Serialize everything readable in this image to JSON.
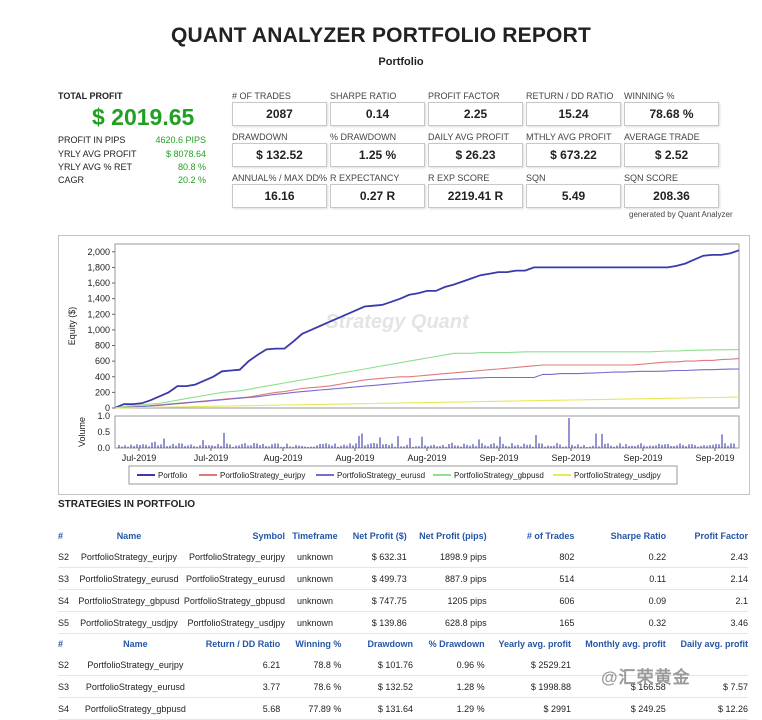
{
  "report": {
    "title": "QUANT ANALYZER PORTFOLIO REPORT",
    "subtitle": "Portfolio",
    "generated_by": "generated by Quant Analyzer"
  },
  "summary": {
    "total_profit_label": "TOTAL PROFIT",
    "total_profit_value": "$ 2019.65",
    "rows": [
      {
        "label": "PROFIT IN PIPS",
        "value": "4620.6 PIPS"
      },
      {
        "label": "YRLY AVG PROFIT",
        "value": "$ 8078.64"
      },
      {
        "label": "YRLY AVG % RET",
        "value": "80.8 %"
      },
      {
        "label": "CAGR",
        "value": "20.2 %"
      }
    ]
  },
  "metrics": [
    {
      "label": "# OF TRADES",
      "value": "2087"
    },
    {
      "label": "SHARPE RATIO",
      "value": "0.14"
    },
    {
      "label": "PROFIT FACTOR",
      "value": "2.25"
    },
    {
      "label": "RETURN / DD RATIO",
      "value": "15.24"
    },
    {
      "label": "WINNING %",
      "value": "78.68 %"
    },
    {
      "label": "DRAWDOWN",
      "value": "$ 132.52"
    },
    {
      "label": "% DRAWDOWN",
      "value": "1.25 %"
    },
    {
      "label": "DAILY AVG PROFIT",
      "value": "$ 26.23"
    },
    {
      "label": "MTHLY AVG PROFIT",
      "value": "$ 673.22"
    },
    {
      "label": "AVERAGE TRADE",
      "value": "$ 2.52"
    },
    {
      "label": "ANNUAL% / MAX DD%",
      "value": "16.16"
    },
    {
      "label": "R EXPECTANCY",
      "value": "0.27 R"
    },
    {
      "label": "R EXP SCORE",
      "value": "2219.41 R"
    },
    {
      "label": "SQN",
      "value": "5.49"
    },
    {
      "label": "SQN SCORE",
      "value": "208.36"
    }
  ],
  "chart_data": {
    "type": "line",
    "watermark": "Strategy Quant",
    "x": [
      0,
      1,
      2,
      3,
      4,
      5,
      6,
      7,
      8,
      9,
      10,
      11,
      12,
      13,
      14,
      15,
      16,
      17,
      18,
      19,
      20,
      21,
      22,
      23,
      24,
      25,
      26,
      27,
      28,
      29,
      30,
      31,
      32,
      33,
      34,
      35,
      36,
      37,
      38,
      39,
      40,
      41,
      42,
      43,
      44,
      45,
      46,
      47,
      48,
      49,
      50,
      51,
      52,
      53,
      54,
      55,
      56,
      57,
      58,
      59,
      60,
      61,
      62,
      63,
      64,
      65,
      66,
      67,
      68,
      69,
      70
    ],
    "xticks": [
      "Jul-2019",
      "Jul-2019",
      "Aug-2019",
      "Aug-2019",
      "Aug-2019",
      "Sep-2019",
      "Sep-2019",
      "Sep-2019",
      "Sep-2019"
    ],
    "ylabel": "Equity ($)",
    "ylim": [
      0,
      2100
    ],
    "yticks": [
      0,
      200,
      400,
      600,
      800,
      1000,
      1200,
      1400,
      1600,
      1800,
      2000
    ],
    "series": [
      {
        "name": "Portfolio",
        "color": "#3a3aaa",
        "values": [
          0,
          50,
          50,
          60,
          100,
          150,
          200,
          280,
          280,
          300,
          350,
          400,
          470,
          480,
          490,
          600,
          680,
          750,
          760,
          760,
          850,
          950,
          1000,
          1050,
          1100,
          1150,
          1200,
          1250,
          1300,
          1310,
          1320,
          1360,
          1400,
          1450,
          1470,
          1500,
          1500,
          1550,
          1580,
          1620,
          1660,
          1700,
          1720,
          1740,
          1740,
          1760,
          1760,
          1800,
          1800,
          1800,
          1800,
          1800,
          1800,
          1800,
          1800,
          1800,
          1800,
          1800,
          1800,
          1800,
          1800,
          1800,
          1800,
          1820,
          1850,
          1900,
          1950,
          1960,
          1960,
          1980,
          2019
        ]
      },
      {
        "name": "PortfolioStrategy_eurjpy",
        "color": "#e07a7a",
        "values": [
          0,
          10,
          15,
          20,
          30,
          40,
          50,
          60,
          70,
          80,
          90,
          100,
          110,
          120,
          130,
          140,
          160,
          180,
          200,
          210,
          230,
          250,
          260,
          270,
          280,
          300,
          320,
          340,
          360,
          370,
          380,
          390,
          400,
          400,
          410,
          420,
          430,
          440,
          450,
          460,
          470,
          480,
          490,
          500,
          510,
          520,
          530,
          540,
          550,
          550,
          550,
          550,
          550,
          550,
          550,
          550,
          550,
          550,
          550,
          560,
          570,
          580,
          590,
          590,
          600,
          600,
          610,
          610,
          620,
          625,
          632
        ]
      },
      {
        "name": "PortfolioStrategy_eurusd",
        "color": "#7a6acc",
        "values": [
          0,
          8,
          12,
          18,
          25,
          35,
          45,
          55,
          65,
          75,
          85,
          95,
          105,
          115,
          125,
          135,
          145,
          160,
          175,
          185,
          200,
          210,
          220,
          230,
          240,
          250,
          260,
          270,
          280,
          290,
          300,
          310,
          320,
          330,
          340,
          350,
          360,
          365,
          370,
          375,
          380,
          385,
          390,
          390,
          390,
          390,
          390,
          390,
          430,
          430,
          440,
          440,
          440,
          445,
          450,
          455,
          460,
          460,
          465,
          470,
          470,
          470,
          475,
          480,
          480,
          485,
          490,
          490,
          495,
          498,
          500
        ]
      },
      {
        "name": "PortfolioStrategy_gbpusd",
        "color": "#8fe08f",
        "values": [
          0,
          20,
          30,
          40,
          50,
          60,
          80,
          100,
          120,
          140,
          160,
          180,
          200,
          210,
          220,
          240,
          260,
          280,
          300,
          320,
          340,
          360,
          380,
          400,
          420,
          440,
          460,
          480,
          500,
          520,
          540,
          560,
          580,
          600,
          620,
          640,
          660,
          680,
          700,
          700,
          700,
          710,
          710,
          710,
          710,
          715,
          720,
          720,
          720,
          720,
          720,
          720,
          720,
          720,
          720,
          720,
          720,
          720,
          720,
          720,
          720,
          725,
          730,
          730,
          735,
          740,
          740,
          745,
          745,
          747,
          748
        ]
      },
      {
        "name": "PortfolioStrategy_usdjpy",
        "color": "#e8e85a",
        "values": [
          0,
          2,
          4,
          6,
          8,
          10,
          12,
          14,
          16,
          18,
          20,
          22,
          24,
          26,
          28,
          30,
          32,
          34,
          36,
          38,
          40,
          42,
          44,
          46,
          48,
          50,
          52,
          54,
          56,
          58,
          60,
          62,
          64,
          66,
          68,
          70,
          72,
          74,
          76,
          78,
          80,
          82,
          84,
          86,
          88,
          90,
          92,
          94,
          96,
          98,
          100,
          102,
          104,
          106,
          108,
          110,
          112,
          114,
          116,
          118,
          120,
          122,
          124,
          126,
          128,
          130,
          132,
          134,
          136,
          138,
          139
        ]
      }
    ],
    "volume": {
      "ylabel": "Volume",
      "ylim": [
        0,
        1.0
      ],
      "yticks": [
        "0.0",
        "0.5",
        "1.0"
      ]
    }
  },
  "strategies": {
    "section_title": "STRATEGIES IN PORTFOLIO",
    "table1": {
      "headers": [
        "#",
        "Name",
        "Symbol",
        "Timeframe",
        "Net Profit ($)",
        "Net Profit (pips)",
        "# of Trades",
        "Sharpe Ratio",
        "Profit Factor"
      ],
      "rows": [
        [
          "S2",
          "PortfolioStrategy_eurjpy",
          "PortfolioStrategy_eurjpy",
          "unknown",
          "$ 632.31",
          "1898.9 pips",
          "802",
          "0.22",
          "2.43"
        ],
        [
          "S3",
          "PortfolioStrategy_eurusd",
          "PortfolioStrategy_eurusd",
          "unknown",
          "$ 499.73",
          "887.9 pips",
          "514",
          "0.11",
          "2.14"
        ],
        [
          "S4",
          "PortfolioStrategy_gbpusd",
          "PortfolioStrategy_gbpusd",
          "unknown",
          "$ 747.75",
          "1205 pips",
          "606",
          "0.09",
          "2.1"
        ],
        [
          "S5",
          "PortfolioStrategy_usdjpy",
          "PortfolioStrategy_usdjpy",
          "unknown",
          "$ 139.86",
          "628.8 pips",
          "165",
          "0.32",
          "3.46"
        ]
      ]
    },
    "table2": {
      "headers": [
        "#",
        "Name",
        "Return / DD Ratio",
        "Winning %",
        "Drawdown",
        "% Drawdown",
        "Yearly avg. profit",
        "Monthly avg. profit",
        "Daily avg. profit"
      ],
      "rows": [
        [
          "S2",
          "PortfolioStrategy_eurjpy",
          "6.21",
          "78.8 %",
          "$ 101.76",
          "0.96 %",
          "$ 2529.21",
          "",
          ""
        ],
        [
          "S3",
          "PortfolioStrategy_eurusd",
          "3.77",
          "78.6 %",
          "$ 132.52",
          "1.28 %",
          "$ 1998.88",
          "$ 166.58",
          "$ 7.57"
        ],
        [
          "S4",
          "PortfolioStrategy_gbpusd",
          "5.68",
          "77.89 %",
          "$ 131.64",
          "1.29 %",
          "$ 2991",
          "$ 249.25",
          "$ 12.26"
        ]
      ]
    }
  },
  "watermark_logo": "@汇荣黄金"
}
